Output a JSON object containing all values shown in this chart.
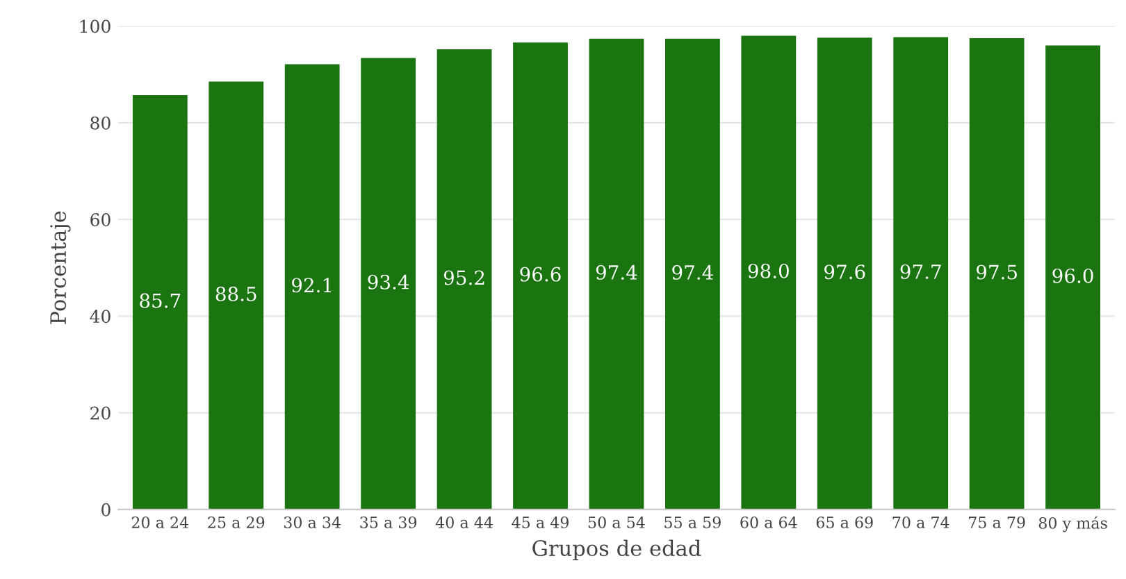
{
  "chart_data": {
    "type": "bar",
    "xlabel": "Grupos de edad",
    "ylabel": "Porcentaje",
    "categories": [
      "20 a 24",
      "25 a 29",
      "30 a 34",
      "35 a 39",
      "40 a 44",
      "45 a 49",
      "50 a 54",
      "55 a 59",
      "60 a 64",
      "65 a 69",
      "70 a 74",
      "75 a 79",
      "80 y más"
    ],
    "values": [
      85.7,
      88.5,
      92.1,
      93.4,
      95.2,
      96.6,
      97.4,
      97.4,
      98.0,
      97.6,
      97.7,
      97.5,
      96.0
    ],
    "value_labels": [
      "85.7",
      "88.5",
      "92.1",
      "93.4",
      "95.2",
      "96.6",
      "97.4",
      "97.4",
      "98.0",
      "97.6",
      "97.7",
      "97.5",
      "96.0"
    ],
    "color": "#1a7410",
    "ylim": [
      0,
      100
    ],
    "yticks": [
      0,
      20,
      40,
      60,
      80,
      100
    ],
    "grid": "y"
  }
}
